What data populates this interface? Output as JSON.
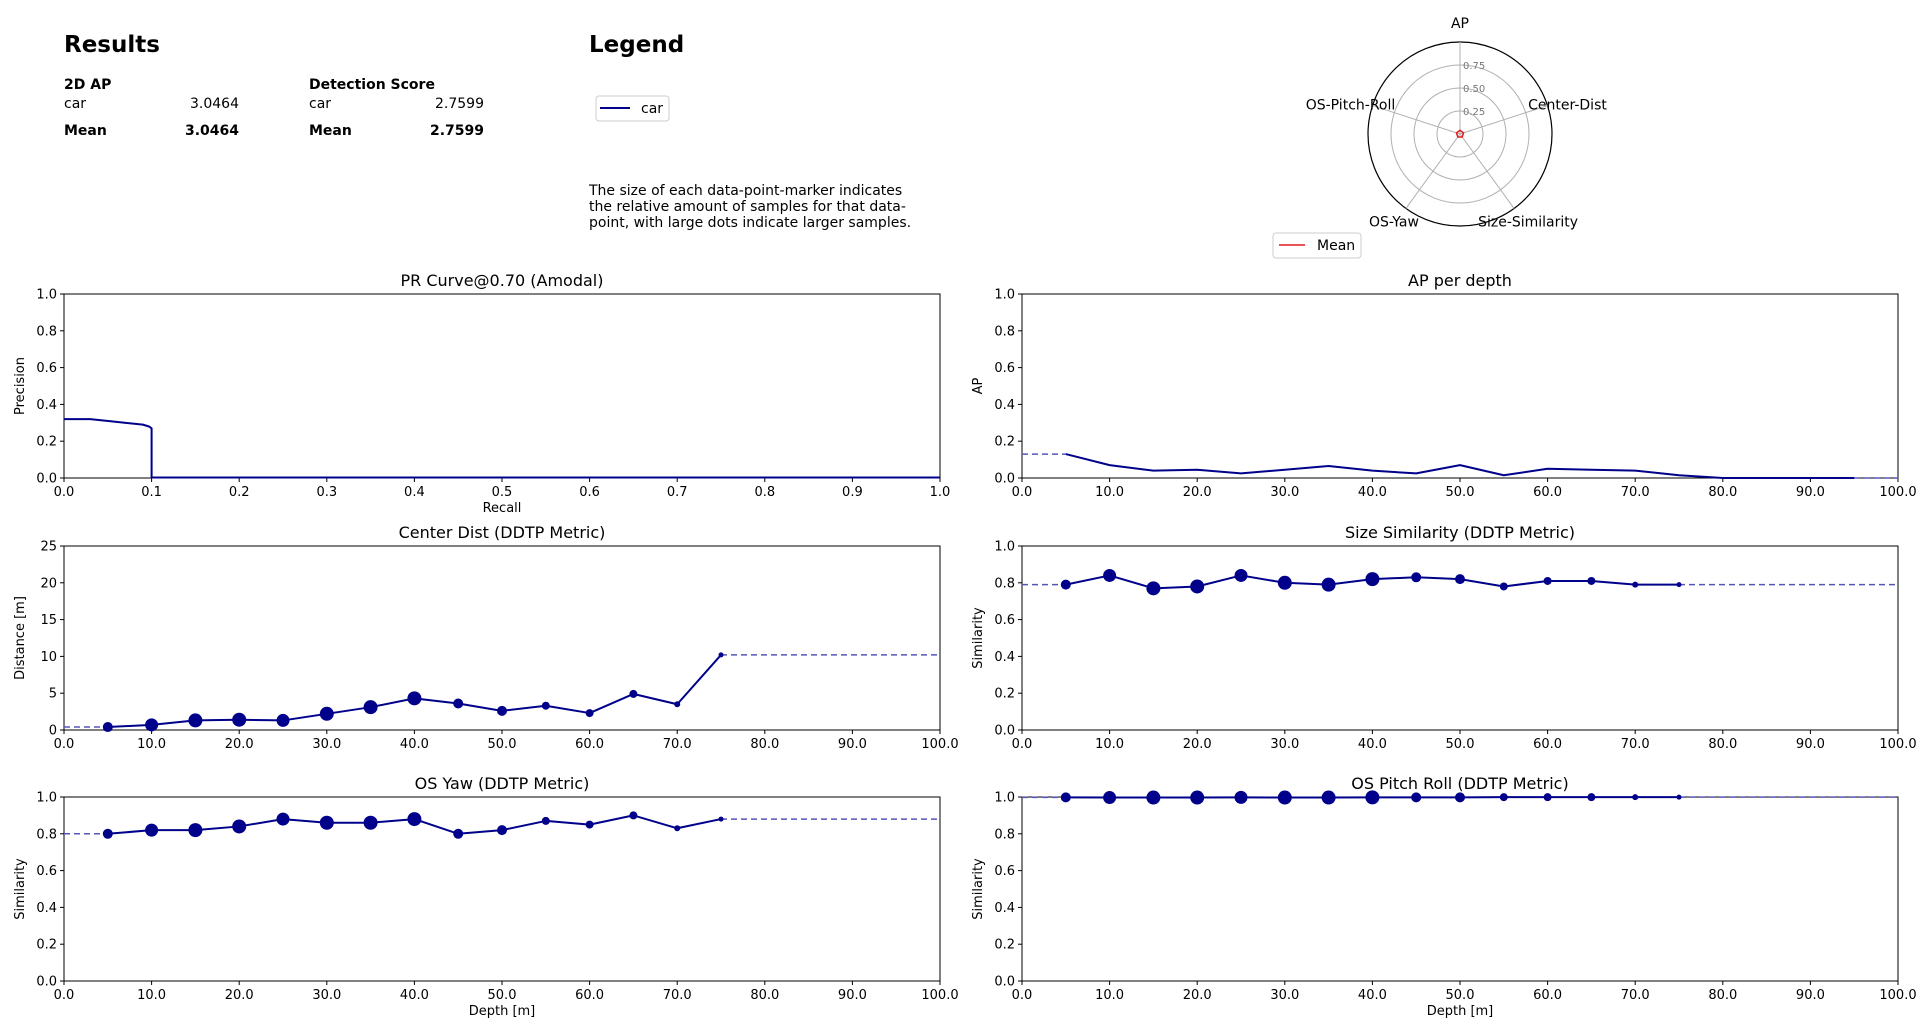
{
  "results": {
    "title": "Results",
    "ap_header": "2D AP",
    "score_header": "Detection Score",
    "ap_rows": [
      {
        "label": "car",
        "value": "3.0464"
      }
    ],
    "ap_mean": {
      "label": "Mean",
      "value": "3.0464"
    },
    "score_rows": [
      {
        "label": "car",
        "value": "2.7599"
      }
    ],
    "score_mean": {
      "label": "Mean",
      "value": "2.7599"
    }
  },
  "legend": {
    "title": "Legend",
    "entry": "car",
    "note_lines": [
      "The size of each data-point-marker indicates",
      "the relative amount of samples for that data-",
      "point, with large dots indicate larger samples."
    ]
  },
  "colors": {
    "series": "#00008b",
    "mean": "#e31a1c",
    "grid": "#b0b0b0"
  },
  "chart_data": [
    {
      "type": "radar",
      "axes": [
        "AP",
        "Center-Dist",
        "Size-Similarity",
        "OS-Yaw",
        "OS-Pitch-Roll"
      ],
      "rings": [
        "0.25",
        "0.50",
        "0.75"
      ],
      "range": [
        0,
        1
      ],
      "series": [
        {
          "name": "Mean",
          "values": [
            0.01,
            0.01,
            0.01,
            0.01,
            0.01
          ]
        }
      ],
      "legend": "Mean"
    },
    {
      "type": "line",
      "title": "PR Curve@0.70 (Amodal)",
      "xlabel": "Recall",
      "ylabel": "Precision",
      "xlim": [
        0,
        1
      ],
      "ylim": [
        0,
        1
      ],
      "xticks": [
        "0.0",
        "0.1",
        "0.2",
        "0.3",
        "0.4",
        "0.5",
        "0.6",
        "0.7",
        "0.8",
        "0.9",
        "1.0"
      ],
      "yticks": [
        "0.0",
        "0.2",
        "0.4",
        "0.6",
        "0.8",
        "1.0"
      ],
      "series": [
        {
          "x": [
            0,
            0.03,
            0.06,
            0.09,
            0.097,
            0.1,
            0.1,
            1.0
          ],
          "y": [
            0.32,
            0.32,
            0.305,
            0.29,
            0.28,
            0.27,
            0.003,
            0.003
          ]
        }
      ]
    },
    {
      "type": "line",
      "title": "AP per depth",
      "xlabel": "",
      "ylabel": "AP",
      "xlim": [
        0,
        100
      ],
      "ylim": [
        0,
        1
      ],
      "xticks": [
        "0.0",
        "10.0",
        "20.0",
        "30.0",
        "40.0",
        "50.0",
        "60.0",
        "70.0",
        "80.0",
        "90.0",
        "100.0"
      ],
      "yticks": [
        "0.0",
        "0.2",
        "0.4",
        "0.6",
        "0.8",
        "1.0"
      ],
      "series": [
        {
          "x": [
            5,
            10,
            15,
            20,
            25,
            30,
            35,
            40,
            45,
            50,
            55,
            60,
            65,
            70,
            75,
            80,
            85,
            90,
            95
          ],
          "y": [
            0.13,
            0.07,
            0.04,
            0.045,
            0.025,
            0.045,
            0.065,
            0.04,
            0.025,
            0.07,
            0.015,
            0.05,
            0.045,
            0.04,
            0.015,
            0.0,
            0.0,
            0.0,
            0.0
          ]
        }
      ],
      "dashed": [
        {
          "x": [
            0,
            5
          ],
          "y": [
            0.13,
            0.13
          ]
        },
        {
          "x": [
            95,
            100
          ],
          "y": [
            0.0,
            0.0
          ]
        }
      ]
    },
    {
      "type": "scatter-line",
      "title": "Center Dist (DDTP Metric)",
      "xlabel": "",
      "ylabel": "Distance [m]",
      "xlim": [
        0,
        100
      ],
      "ylim": [
        0,
        25
      ],
      "xticks": [
        "0.0",
        "10.0",
        "20.0",
        "30.0",
        "40.0",
        "50.0",
        "60.0",
        "70.0",
        "80.0",
        "90.0",
        "100.0"
      ],
      "yticks": [
        "0",
        "5",
        "10",
        "15",
        "20",
        "25"
      ],
      "series": [
        {
          "x": [
            5,
            10,
            15,
            20,
            25,
            30,
            35,
            40,
            45,
            50,
            55,
            60,
            65,
            70,
            75
          ],
          "y": [
            0.4,
            0.7,
            1.3,
            1.4,
            1.3,
            2.2,
            3.1,
            4.3,
            3.6,
            2.6,
            3.3,
            2.3,
            4.9,
            3.5,
            10.2
          ],
          "sizes": [
            5,
            6,
            7,
            7,
            6,
            7,
            7,
            7,
            5,
            5,
            4,
            4,
            4,
            3,
            2
          ]
        }
      ],
      "dashed": [
        {
          "x": [
            0,
            5
          ],
          "y": [
            0.4,
            0.4
          ]
        },
        {
          "x": [
            75,
            100
          ],
          "y": [
            10.2,
            10.2
          ]
        }
      ]
    },
    {
      "type": "scatter-line",
      "title": "Size Similarity (DDTP Metric)",
      "xlabel": "",
      "ylabel": "Similarity",
      "xlim": [
        0,
        100
      ],
      "ylim": [
        0,
        1
      ],
      "xticks": [
        "0.0",
        "10.0",
        "20.0",
        "30.0",
        "40.0",
        "50.0",
        "60.0",
        "70.0",
        "80.0",
        "90.0",
        "100.0"
      ],
      "yticks": [
        "0.0",
        "0.2",
        "0.4",
        "0.6",
        "0.8",
        "1.0"
      ],
      "series": [
        {
          "x": [
            5,
            10,
            15,
            20,
            25,
            30,
            35,
            40,
            45,
            50,
            55,
            60,
            65,
            70,
            75
          ],
          "y": [
            0.79,
            0.84,
            0.77,
            0.78,
            0.84,
            0.8,
            0.79,
            0.82,
            0.83,
            0.82,
            0.78,
            0.81,
            0.81,
            0.79,
            0.79
          ],
          "sizes": [
            5,
            6,
            7,
            7,
            6,
            7,
            7,
            7,
            5,
            5,
            4,
            4,
            4,
            3,
            2
          ]
        }
      ],
      "dashed": [
        {
          "x": [
            0,
            5
          ],
          "y": [
            0.79,
            0.79
          ]
        },
        {
          "x": [
            75,
            100
          ],
          "y": [
            0.79,
            0.79
          ]
        }
      ]
    },
    {
      "type": "scatter-line",
      "title": "OS Yaw (DDTP Metric)",
      "xlabel": "Depth [m]",
      "ylabel": "Similarity",
      "xlim": [
        0,
        100
      ],
      "ylim": [
        0,
        1
      ],
      "xticks": [
        "0.0",
        "10.0",
        "20.0",
        "30.0",
        "40.0",
        "50.0",
        "60.0",
        "70.0",
        "80.0",
        "90.0",
        "100.0"
      ],
      "yticks": [
        "0.0",
        "0.2",
        "0.4",
        "0.6",
        "0.8",
        "1.0"
      ],
      "series": [
        {
          "x": [
            5,
            10,
            15,
            20,
            25,
            30,
            35,
            40,
            45,
            50,
            55,
            60,
            65,
            70,
            75
          ],
          "y": [
            0.8,
            0.82,
            0.82,
            0.84,
            0.88,
            0.86,
            0.86,
            0.88,
            0.8,
            0.82,
            0.87,
            0.85,
            0.9,
            0.83,
            0.88
          ],
          "sizes": [
            5,
            6,
            7,
            7,
            6,
            7,
            7,
            7,
            5,
            5,
            4,
            4,
            4,
            3,
            2
          ]
        }
      ],
      "dashed": [
        {
          "x": [
            0,
            5
          ],
          "y": [
            0.8,
            0.8
          ]
        },
        {
          "x": [
            75,
            100
          ],
          "y": [
            0.88,
            0.88
          ]
        }
      ]
    },
    {
      "type": "scatter-line",
      "title": "OS Pitch Roll (DDTP Metric)",
      "xlabel": "Depth [m]",
      "ylabel": "Similarity",
      "xlim": [
        0,
        100
      ],
      "ylim": [
        0,
        1
      ],
      "xticks": [
        "0.0",
        "10.0",
        "20.0",
        "30.0",
        "40.0",
        "50.0",
        "60.0",
        "70.0",
        "80.0",
        "90.0",
        "100.0"
      ],
      "yticks": [
        "0.0",
        "0.2",
        "0.4",
        "0.6",
        "0.8",
        "1.0"
      ],
      "series": [
        {
          "x": [
            5,
            10,
            15,
            20,
            25,
            30,
            35,
            40,
            45,
            50,
            55,
            60,
            65,
            70,
            75
          ],
          "y": [
            0.998,
            0.997,
            0.997,
            0.997,
            0.998,
            0.997,
            0.997,
            0.998,
            0.998,
            0.998,
            0.999,
            0.999,
            0.999,
            0.999,
            0.999
          ],
          "sizes": [
            5,
            6,
            7,
            7,
            6,
            7,
            7,
            7,
            5,
            5,
            4,
            4,
            4,
            3,
            2
          ]
        }
      ],
      "dashed": [
        {
          "x": [
            0,
            5
          ],
          "y": [
            0.998,
            0.998
          ]
        },
        {
          "x": [
            75,
            100
          ],
          "y": [
            0.999,
            0.999
          ]
        }
      ]
    }
  ]
}
